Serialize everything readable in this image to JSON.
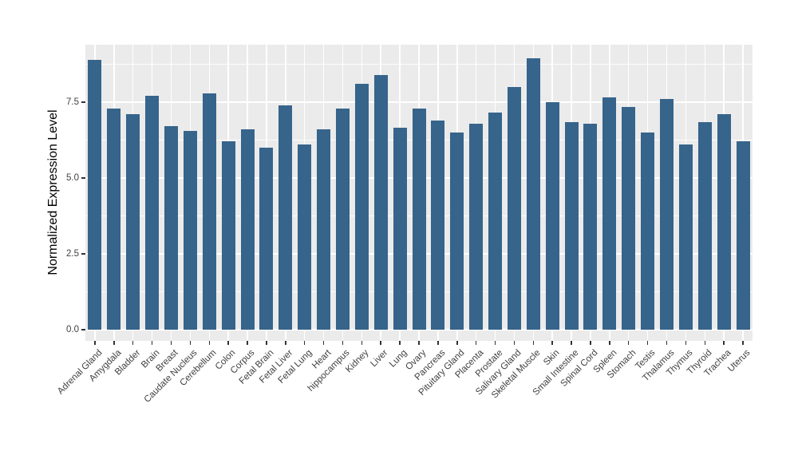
{
  "figure": {
    "background_color": "#FFFFFF",
    "style": "ggplot2"
  },
  "chart_data": {
    "type": "bar",
    "title": "",
    "xlabel": "",
    "ylabel": "Normalized Expression Level",
    "categories": [
      "Adrenal Gland",
      "Amygdala",
      "Bladder",
      "Brain",
      "Breast",
      "Caudate Nucleus",
      "Cerebellum",
      "Colon",
      "Corpus",
      "Fetal Brain",
      "Fetal Liver",
      "Fetal Lung",
      "Heart",
      "hippocampus",
      "Kidney",
      "Liver",
      "Lung",
      "Ovary",
      "Pancreas",
      "Pituitary Gland",
      "Placenta",
      "Prostate",
      "Salivary Gland",
      "Skeletal Muscle",
      "Skin",
      "Small Intestine",
      "Spinal Cord",
      "Spleen",
      "Stomach",
      "Testis",
      "Thalamus",
      "Thymus",
      "Thyroid",
      "Trachea",
      "Uterus"
    ],
    "values": [
      8.9,
      7.3,
      7.1,
      7.7,
      6.7,
      6.55,
      7.8,
      6.2,
      6.6,
      6.0,
      7.4,
      6.1,
      6.6,
      7.3,
      8.1,
      8.4,
      6.65,
      7.3,
      6.9,
      6.5,
      6.8,
      7.15,
      8.0,
      8.95,
      7.5,
      6.85,
      6.8,
      7.65,
      7.35,
      6.5,
      7.6,
      6.1,
      6.85,
      7.1,
      6.2
    ],
    "ylim": [
      -0.37,
      9.39
    ],
    "yticks": [
      0.0,
      2.5,
      5.0,
      7.5
    ],
    "ytick_labels": [
      "0.0",
      "2.5",
      "5.0",
      "7.5"
    ],
    "minor_yticks": [
      1.25,
      3.75,
      6.25,
      8.75
    ],
    "grid": "on",
    "legend": "none",
    "x_label_rotation_deg": 45,
    "bar_color": "#36648B",
    "panel_background_color": "#EBEBEB",
    "gridline_color": "#FFFFFF",
    "tick_label_color": "#404040",
    "axis_title_color": "#000000"
  }
}
